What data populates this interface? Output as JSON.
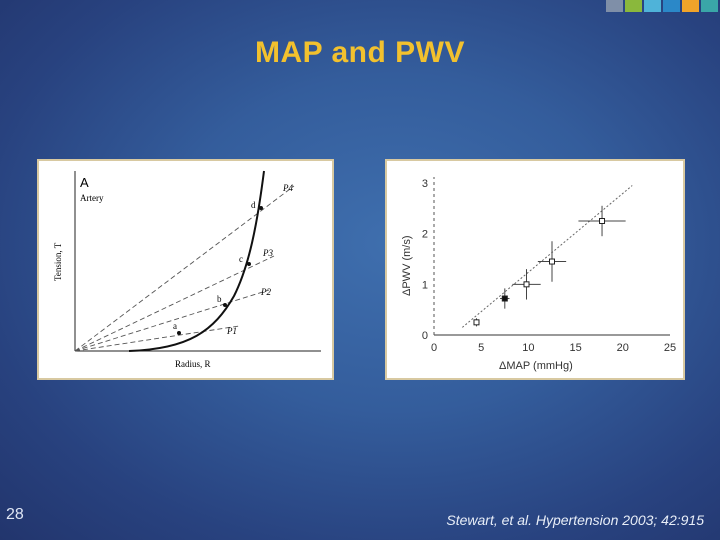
{
  "title": "MAP and PWV",
  "slide_number": "28",
  "citation": "Stewart, et al. Hypertension 2003; 42:915",
  "colors": {
    "title": "#f2c12e",
    "strip": [
      "#7f8fa8",
      "#8ab83c",
      "#4fb3d9",
      "#2b88c8",
      "#f0a32a",
      "#3aa6a8"
    ]
  },
  "left_figure": {
    "panel_label": "A",
    "subtitle": "Artery",
    "y_label": "Tension, T",
    "x_label": "Radius, R",
    "points": [
      "a",
      "b",
      "c",
      "d"
    ],
    "pressure_labels": [
      "P1",
      "P2",
      "P3",
      "P4"
    ]
  },
  "chart_data": {
    "type": "scatter",
    "xlabel": "ΔMAP (mmHg)",
    "ylabel": "ΔPWV (m/s)",
    "xlim": [
      0,
      25
    ],
    "ylim": [
      0,
      3
    ],
    "x_ticks": [
      "0",
      "5",
      "10",
      "15",
      "20",
      "25"
    ],
    "y_ticks": [
      "0",
      "1",
      "2",
      "3"
    ],
    "points": [
      {
        "x": 4.5,
        "y": 0.25,
        "xerr": 0.3,
        "yerr": 0.08
      },
      {
        "x": 7.5,
        "y": 0.72,
        "xerr": 0.5,
        "yerr": 0.2
      },
      {
        "x": 9.8,
        "y": 1.0,
        "xerr": 1.5,
        "yerr": 0.3
      },
      {
        "x": 12.5,
        "y": 1.45,
        "xerr": 1.5,
        "yerr": 0.4
      },
      {
        "x": 17.8,
        "y": 2.25,
        "xerr": 2.5,
        "yerr": 0.3
      }
    ],
    "trend_line": {
      "x": [
        3,
        21
      ],
      "y": [
        0.15,
        2.95
      ]
    },
    "grid": false
  }
}
